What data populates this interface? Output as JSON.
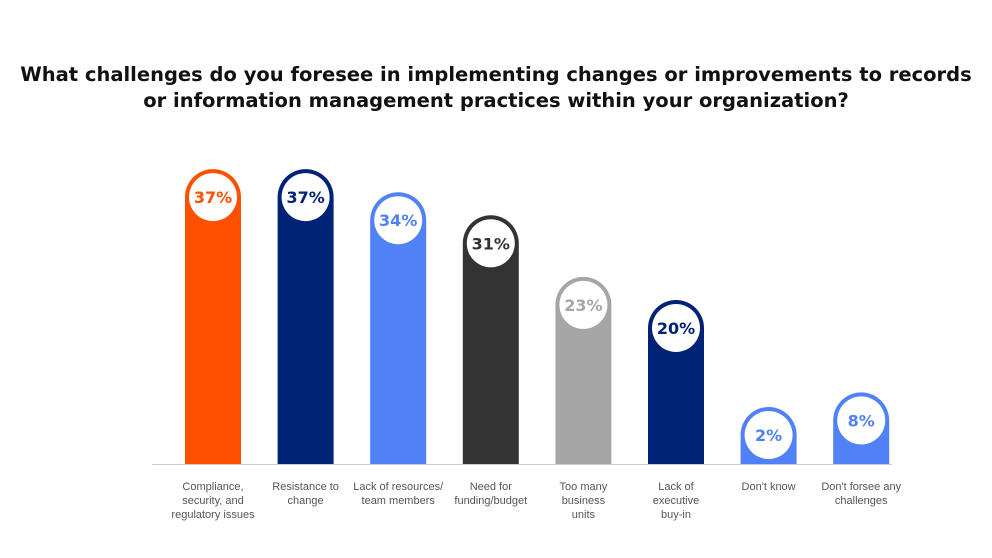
{
  "chart_data": {
    "type": "bar",
    "title": [
      "What challenges do you foresee in implementing changes or improvements to records",
      "or information management practices within your organization?"
    ],
    "categories": [
      [
        "Compliance,",
        "security, and",
        "regulatory issues"
      ],
      [
        "Resistance to",
        "change"
      ],
      [
        "Lack of resources/",
        "team members"
      ],
      [
        "Need for",
        "funding/budget"
      ],
      [
        "Too many",
        "business",
        "units"
      ],
      [
        "Lack of",
        "executive",
        "buy-in"
      ],
      [
        "Don't know"
      ],
      [
        "Don't forsee any",
        "challenges"
      ]
    ],
    "values": [
      37,
      37,
      34,
      31,
      23,
      20,
      2,
      8
    ],
    "data_labels": [
      "37%",
      "37%",
      "34%",
      "31%",
      "23%",
      "20%",
      "2%",
      "8%"
    ],
    "colors": [
      "#ff5000",
      "#002277",
      "#5181f7",
      "#333333",
      "#a6a6a6",
      "#002277",
      "#5181f7",
      "#5181f7"
    ],
    "unit": "%",
    "grid": false,
    "legend": "none"
  }
}
